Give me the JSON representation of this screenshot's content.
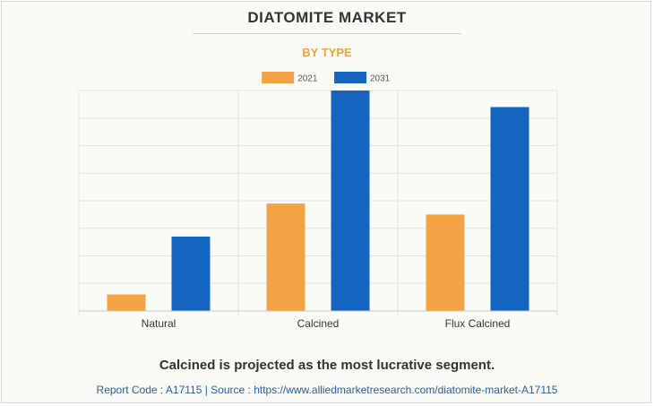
{
  "header": {
    "title": "DIATOMITE MARKET",
    "subtitle": "BY TYPE"
  },
  "chart_data": {
    "type": "bar",
    "title": "DIATOMITE MARKET",
    "subtitle": "BY TYPE",
    "categories": [
      "Natural",
      "Calcined",
      "Flux Calcined"
    ],
    "series": [
      {
        "name": "2021",
        "color": "#f2a444",
        "values": [
          6,
          39,
          35
        ]
      },
      {
        "name": "2031",
        "color": "#1565c0",
        "values": [
          27,
          80,
          74
        ]
      }
    ],
    "ylim": [
      0,
      80
    ],
    "xlabel": "",
    "ylabel": "",
    "grid": true,
    "legend_position": "top-center"
  },
  "footer": {
    "headline": "Calcined is projected as the most lucrative segment.",
    "source": "Report Code : A17115  |  Source : https://www.alliedmarketresearch.com/diatomite-market-A17115"
  }
}
